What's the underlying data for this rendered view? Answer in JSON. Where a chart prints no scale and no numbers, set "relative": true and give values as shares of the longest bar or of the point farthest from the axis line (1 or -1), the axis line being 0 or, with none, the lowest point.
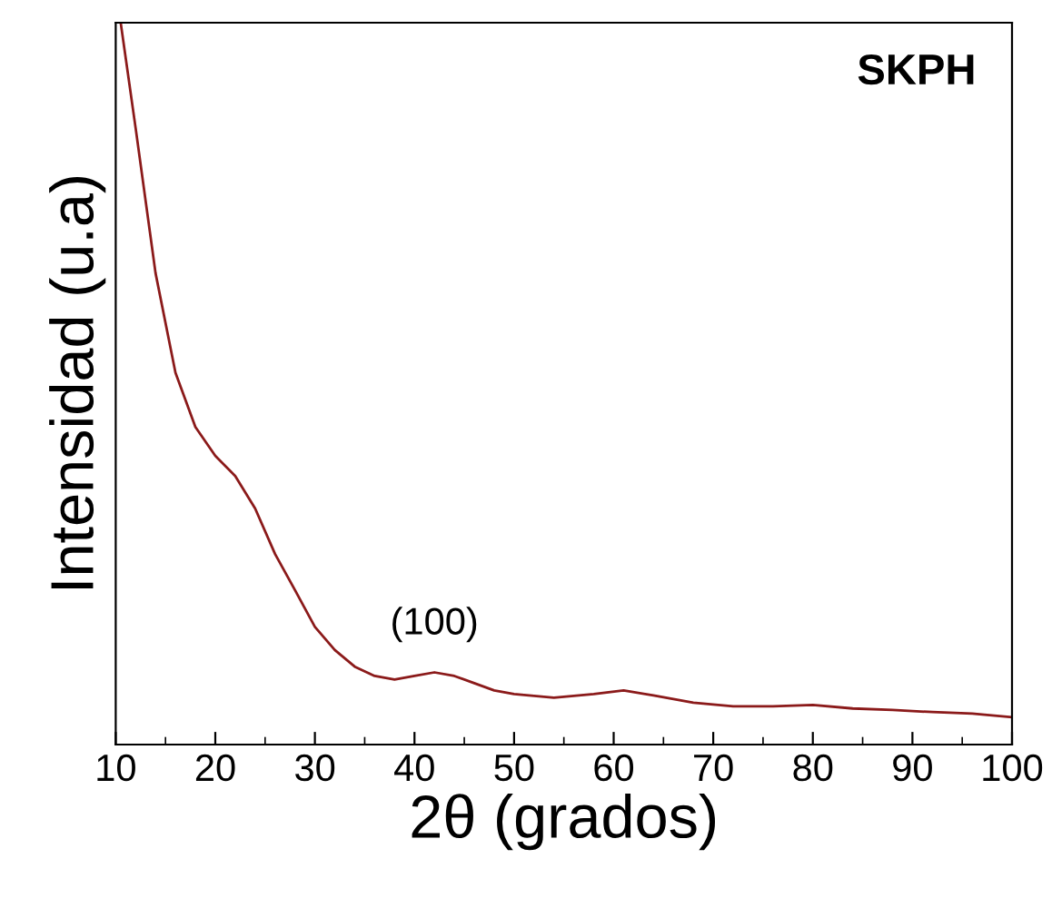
{
  "chart_data": {
    "type": "line",
    "relative": true,
    "xlabel": "2θ (grados)",
    "ylabel": "Intensidad (u.a)",
    "x": [
      10.5,
      12,
      14,
      16,
      18,
      20,
      22,
      24,
      26,
      28,
      30,
      32,
      34,
      36,
      38,
      40,
      42,
      44,
      46,
      48,
      50,
      54,
      58,
      61,
      64,
      68,
      72,
      76,
      80,
      84,
      88,
      92,
      96,
      100
    ],
    "series": [
      {
        "color": "#8b1a1a",
        "values": [
          1.0,
          0.854,
          0.653,
          0.515,
          0.44,
          0.4,
          0.372,
          0.327,
          0.264,
          0.214,
          0.163,
          0.131,
          0.108,
          0.095,
          0.09,
          0.095,
          0.1,
          0.095,
          0.085,
          0.075,
          0.07,
          0.065,
          0.07,
          0.075,
          0.068,
          0.058,
          0.053,
          0.053,
          0.055,
          0.05,
          0.048,
          0.045,
          0.043,
          0.038
        ]
      }
    ],
    "xlim": [
      10,
      100
    ],
    "xticks": [
      10,
      20,
      30,
      40,
      50,
      60,
      70,
      80,
      90,
      100
    ],
    "annotations": [
      {
        "text": "(100)",
        "x": 42,
        "y": 0.1
      },
      "SKPH"
    ],
    "grid": false,
    "legend": false,
    "marker": "none",
    "line_style": "solid"
  }
}
